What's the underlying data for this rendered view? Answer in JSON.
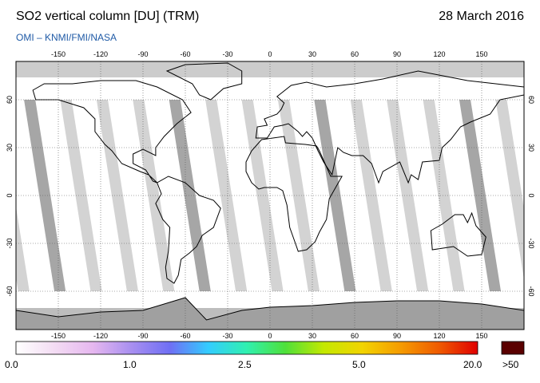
{
  "header": {
    "title": "SO2 vertical column [DU] (TRM)",
    "date": "28 March 2016",
    "credit": "OMI  –  KNMI/FMI/NASA"
  },
  "map": {
    "lon_ticks": [
      "-150",
      "-120",
      "-90",
      "-60",
      "-30",
      "0",
      "30",
      "60",
      "90",
      "120",
      "150"
    ],
    "lat_ticks": [
      "60",
      "30",
      "0",
      "-30",
      "-60"
    ],
    "projection": "equirectangular",
    "grid": true,
    "colors": {
      "swath_gap": "#d3d3d3",
      "swath_dark": "#a6a6a6",
      "polar_band": "#cccccc",
      "antarctica": "#a0a0a0",
      "coast": "#000000"
    }
  },
  "colorbar": {
    "labels": [
      "0.0",
      "1.0",
      "2.5",
      "5.0",
      "20.0"
    ],
    "overflow_label": ">50",
    "overflow_color": "#5a0000",
    "colors": [
      "#ffffff",
      "#f3dcf3",
      "#e6b7ef",
      "#a88ff0",
      "#6f6ff4",
      "#33ccff",
      "#30f0b0",
      "#4ee03a",
      "#c4e800",
      "#f2d400",
      "#f59b00",
      "#ef5a00",
      "#e00000"
    ]
  }
}
